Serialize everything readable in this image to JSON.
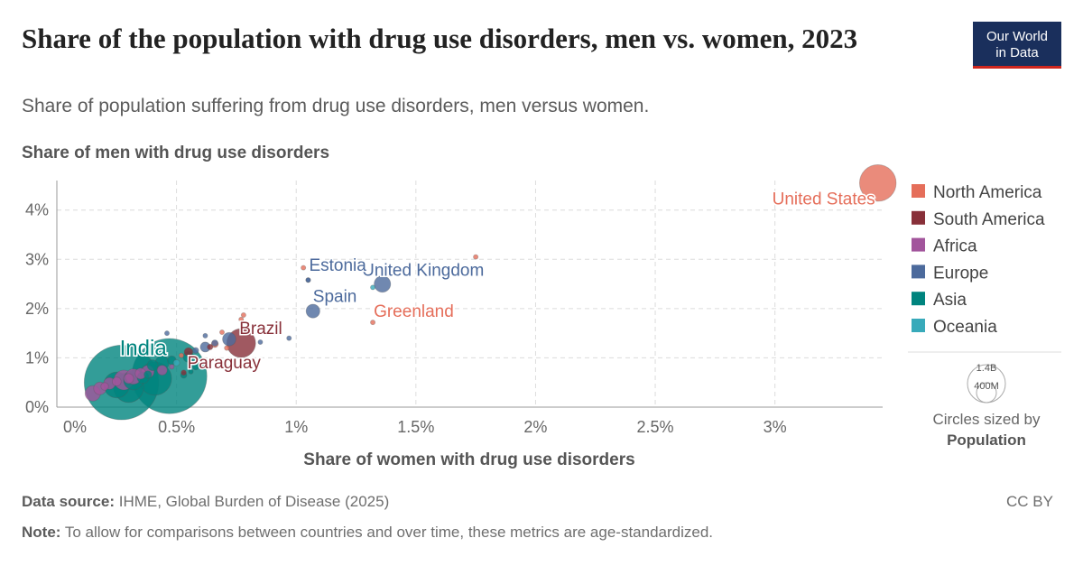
{
  "header": {
    "title": "Share of the population with drug use disorders, men vs. women, 2023",
    "subtitle": "Share of population suffering from drug use disorders, men versus women.",
    "logo_line1": "Our World",
    "logo_line2": "in Data"
  },
  "footer": {
    "source_label": "Data source:",
    "source_text": "IHME, Global Burden of Disease (2025)",
    "note_label": "Note:",
    "note_text": "To allow for comparisons between countries and over time, these metrics are age-standardized.",
    "license": "CC BY"
  },
  "chart_data": {
    "type": "scatter",
    "xlabel": "Share of women with drug use disorders",
    "ylabel": "Share of men with drug use disorders",
    "xlim": [
      0,
      3.45
    ],
    "ylim": [
      0,
      4.6
    ],
    "x_ticks": [
      0,
      0.5,
      1,
      1.5,
      2,
      2.5,
      3
    ],
    "x_tick_labels": [
      "0%",
      "0.5%",
      "1%",
      "1.5%",
      "2%",
      "2.5%",
      "3%"
    ],
    "y_ticks": [
      0,
      1,
      2,
      3,
      4
    ],
    "y_tick_labels": [
      "0%",
      "1%",
      "2%",
      "3%",
      "4%"
    ],
    "grid": true,
    "legend_position": "right",
    "colors": {
      "North America": "#e56e5a",
      "South America": "#883039",
      "Africa": "#a2559c",
      "Europe": "#4c6a9c",
      "Asia": "#00847e",
      "Oceania": "#38aaba"
    },
    "legend": [
      "North America",
      "South America",
      "Africa",
      "Europe",
      "Asia",
      "Oceania"
    ],
    "size_legend": {
      "title_line1": "Circles sized by",
      "title_line2": "Population",
      "big": "1.4B",
      "small": "400M"
    },
    "labeled_points": [
      {
        "label": "United States",
        "region": "North America",
        "x": 3.43,
        "y": 4.55,
        "population": 340,
        "label_anchor": "end",
        "label_dx": -3,
        "label_dy": 24
      },
      {
        "label": "United Kingdom",
        "region": "Europe",
        "x": 1.36,
        "y": 2.5,
        "population": 69,
        "label_anchor": "middle",
        "label_dx": 45,
        "label_dy": -9
      },
      {
        "label": "Estonia",
        "region": "Europe",
        "x": 1.05,
        "y": 2.58,
        "population": 1.3,
        "label_anchor": "start",
        "label_dx": 1,
        "label_dy": -10
      },
      {
        "label": "Spain",
        "region": "Europe",
        "x": 1.07,
        "y": 1.95,
        "population": 48,
        "label_anchor": "start",
        "label_dx": 0,
        "label_dy": -10
      },
      {
        "label": "Greenland",
        "region": "North America",
        "x": 1.32,
        "y": 1.72,
        "population": 0.06,
        "label_anchor": "start",
        "label_dx": 1,
        "label_dy": -6
      },
      {
        "label": "Brazil",
        "region": "South America",
        "x": 0.77,
        "y": 1.3,
        "population": 211,
        "label_anchor": "start",
        "label_dx": -2,
        "label_dy": -10
      },
      {
        "label": "Paraguay",
        "region": "South America",
        "x": 0.53,
        "y": 0.7,
        "population": 6.9,
        "label_anchor": "start",
        "label_dx": 4,
        "label_dy": -5
      },
      {
        "label": "India",
        "region": "Asia",
        "x": 0.47,
        "y": 0.63,
        "population": 1430,
        "label_anchor": "middle",
        "label_dx": -29,
        "label_dy": -23
      }
    ],
    "points": [
      {
        "region": "North America",
        "x": 1.75,
        "y": 3.05,
        "population": 0.4
      },
      {
        "region": "North America",
        "x": 1.03,
        "y": 2.83,
        "population": 0.1
      },
      {
        "region": "Oceania",
        "x": 1.32,
        "y": 2.43,
        "population": 0.2
      },
      {
        "region": "Europe",
        "x": 1.05,
        "y": 2.58,
        "population": 1.3
      },
      {
        "region": "North America",
        "x": 0.78,
        "y": 1.87,
        "population": 0.1
      },
      {
        "region": "North America",
        "x": 0.77,
        "y": 1.78,
        "population": 0.1
      },
      {
        "region": "Europe",
        "x": 0.97,
        "y": 1.4,
        "population": 0.5
      },
      {
        "region": "Europe",
        "x": 0.46,
        "y": 1.5,
        "population": 0.6
      },
      {
        "region": "Europe",
        "x": 0.62,
        "y": 1.45,
        "population": 0.6
      },
      {
        "region": "Europe",
        "x": 0.72,
        "y": 1.38,
        "population": 45
      },
      {
        "region": "Europe",
        "x": 0.66,
        "y": 1.3,
        "population": 10
      },
      {
        "region": "Europe",
        "x": 0.62,
        "y": 1.22,
        "population": 25
      },
      {
        "region": "Europe",
        "x": 0.85,
        "y": 1.32,
        "population": 5
      },
      {
        "region": "Europe",
        "x": 0.58,
        "y": 1.15,
        "population": 9
      },
      {
        "region": "North America",
        "x": 0.69,
        "y": 1.52,
        "population": 1
      },
      {
        "region": "North America",
        "x": 0.66,
        "y": 1.28,
        "population": 12
      },
      {
        "region": "North America",
        "x": 0.71,
        "y": 1.2,
        "population": 6
      },
      {
        "region": "South America",
        "x": 0.64,
        "y": 1.22,
        "population": 8
      },
      {
        "region": "South America",
        "x": 0.55,
        "y": 1.12,
        "population": 19
      },
      {
        "region": "North America",
        "x": 0.52,
        "y": 1.05,
        "population": 4
      },
      {
        "region": "Asia",
        "x": 0.55,
        "y": 1.02,
        "population": 30
      },
      {
        "region": "Asia",
        "x": 0.48,
        "y": 0.95,
        "population": 20
      },
      {
        "region": "Asia",
        "x": 0.44,
        "y": 0.9,
        "population": 50
      },
      {
        "region": "Asia",
        "x": 0.4,
        "y": 0.85,
        "population": 30
      },
      {
        "region": "Asia",
        "x": 0.58,
        "y": 0.82,
        "population": 10
      },
      {
        "region": "Africa",
        "x": 0.48,
        "y": 0.82,
        "population": 5
      },
      {
        "region": "Africa",
        "x": 0.44,
        "y": 0.75,
        "population": 25
      },
      {
        "region": "Africa",
        "x": 0.38,
        "y": 0.72,
        "population": 40
      },
      {
        "region": "Africa",
        "x": 0.35,
        "y": 0.68,
        "population": 30
      },
      {
        "region": "Africa",
        "x": 0.32,
        "y": 0.62,
        "population": 60
      },
      {
        "region": "Africa",
        "x": 0.3,
        "y": 0.58,
        "population": 25
      },
      {
        "region": "Africa",
        "x": 0.28,
        "y": 0.55,
        "population": 100
      },
      {
        "region": "Africa",
        "x": 0.25,
        "y": 0.52,
        "population": 20
      },
      {
        "region": "Africa",
        "x": 0.22,
        "y": 0.48,
        "population": 35
      },
      {
        "region": "Africa",
        "x": 0.2,
        "y": 0.42,
        "population": 15
      },
      {
        "region": "Africa",
        "x": 0.18,
        "y": 0.38,
        "population": 40
      },
      {
        "region": "Africa",
        "x": 0.15,
        "y": 0.28,
        "population": 60
      },
      {
        "region": "Asia",
        "x": 0.41,
        "y": 0.58,
        "population": 280
      },
      {
        "region": "Asia",
        "x": 0.27,
        "y": 0.5,
        "population": 1410
      },
      {
        "region": "Asia",
        "x": 0.32,
        "y": 0.55,
        "population": 100
      },
      {
        "region": "Asia",
        "x": 0.36,
        "y": 0.6,
        "population": 35
      },
      {
        "region": "Asia",
        "x": 0.38,
        "y": 0.66,
        "population": 15
      },
      {
        "region": "Asia",
        "x": 0.53,
        "y": 0.65,
        "population": 10
      },
      {
        "region": "Asia",
        "x": 0.56,
        "y": 0.72,
        "population": 5
      },
      {
        "region": "Oceania",
        "x": 0.5,
        "y": 0.9,
        "population": 10
      },
      {
        "region": "Asia",
        "x": 0.25,
        "y": 0.45,
        "population": 170
      },
      {
        "region": "Asia",
        "x": 0.3,
        "y": 0.4,
        "population": 230
      }
    ]
  }
}
